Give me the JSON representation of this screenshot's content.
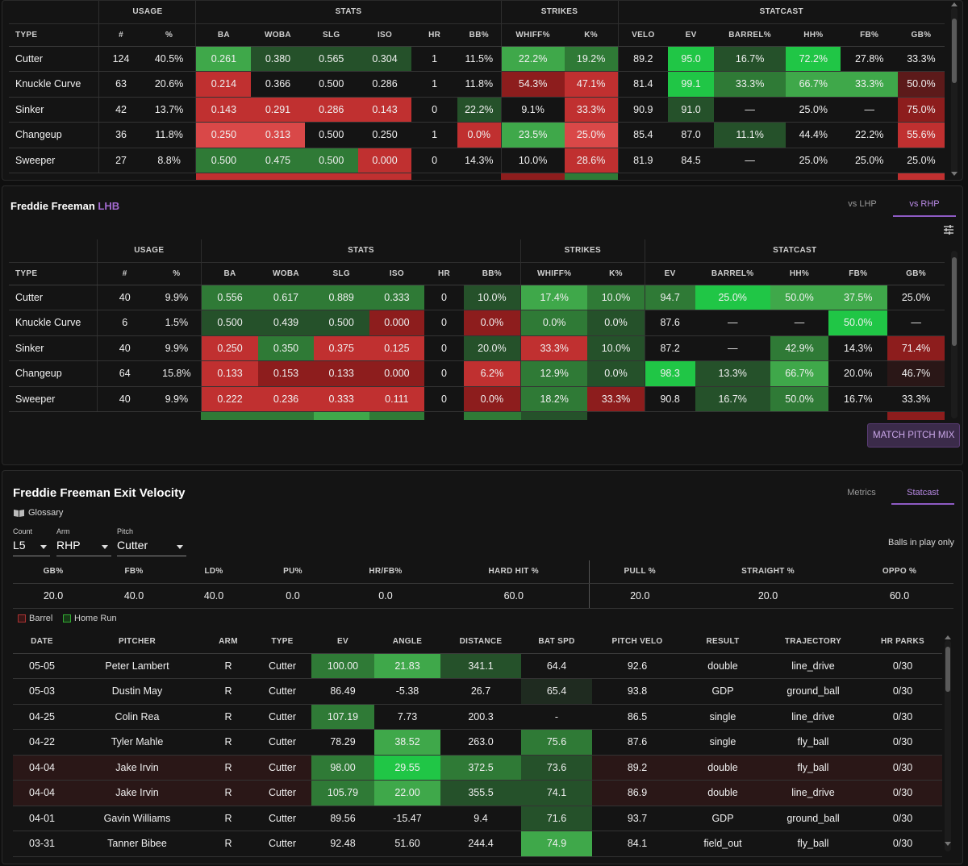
{
  "colors": {
    "g1": "#25512a",
    "g2": "#2f7a36",
    "g3": "#3fa84a",
    "g4": "#20c646",
    "r1": "#5c1a1a",
    "r2": "#8d1d1d",
    "r3": "#c03030",
    "r4": "#d94848",
    "rb": "#2a1717",
    "gb": "#1f2b20"
  },
  "top": {
    "groups": [
      "USAGE",
      "STATS",
      "STRIKES",
      "STATCAST"
    ],
    "headers": [
      "TYPE",
      "#",
      "%",
      "BA",
      "WOBA",
      "SLG",
      "ISO",
      "HR",
      "BB%",
      "WHIFF%",
      "K%",
      "VELO",
      "EV",
      "BARREL%",
      "HH%",
      "FB%",
      "GB%"
    ],
    "rows": [
      {
        "cells": [
          "Cutter",
          "124",
          "40.5%",
          "0.261",
          "0.380",
          "0.565",
          "0.304",
          "1",
          "11.5%",
          "22.2%",
          "19.2%",
          "89.2",
          "95.0",
          "16.7%",
          "72.2%",
          "27.8%",
          "33.3%"
        ],
        "c": [
          "",
          "",
          "",
          "g3",
          "g1",
          "g1",
          "g1",
          "",
          "",
          "g3",
          "g2",
          "",
          "g4",
          "g1",
          "g4",
          "",
          ""
        ]
      },
      {
        "cells": [
          "Knuckle Curve",
          "63",
          "20.6%",
          "0.214",
          "0.366",
          "0.500",
          "0.286",
          "1",
          "11.8%",
          "54.3%",
          "47.1%",
          "81.4",
          "99.1",
          "33.3%",
          "66.7%",
          "33.3%",
          "50.0%"
        ],
        "c": [
          "",
          "",
          "",
          "r3",
          "",
          "",
          "",
          "",
          "",
          "r2",
          "r3",
          "",
          "g4",
          "g2",
          "g3",
          "g3",
          "r1"
        ]
      },
      {
        "cells": [
          "Sinker",
          "42",
          "13.7%",
          "0.143",
          "0.291",
          "0.286",
          "0.143",
          "0",
          "22.2%",
          "9.1%",
          "33.3%",
          "90.9",
          "91.0",
          "—",
          "25.0%",
          "—",
          "75.0%"
        ],
        "c": [
          "",
          "",
          "",
          "r3",
          "r3",
          "r3",
          "r3",
          "",
          "g1",
          "",
          "r3",
          "",
          "g1",
          "",
          "",
          "",
          "r2"
        ]
      },
      {
        "cells": [
          "Changeup",
          "36",
          "11.8%",
          "0.250",
          "0.313",
          "0.500",
          "0.250",
          "1",
          "0.0%",
          "23.5%",
          "25.0%",
          "85.4",
          "87.0",
          "11.1%",
          "44.4%",
          "22.2%",
          "55.6%"
        ],
        "c": [
          "",
          "",
          "",
          "r4",
          "r4",
          "",
          "",
          "",
          "r3",
          "g3",
          "r4",
          "",
          "",
          "g1",
          "",
          "",
          "r3"
        ]
      },
      {
        "cells": [
          "Sweeper",
          "27",
          "8.8%",
          "0.500",
          "0.475",
          "0.500",
          "0.000",
          "0",
          "14.3%",
          "10.0%",
          "28.6%",
          "81.9",
          "84.5",
          "—",
          "25.0%",
          "25.0%",
          "25.0%"
        ],
        "c": [
          "",
          "",
          "",
          "g2",
          "g2",
          "g2",
          "r3",
          "",
          "",
          "",
          "r3",
          "",
          "",
          "",
          "",
          "",
          ""
        ]
      }
    ]
  },
  "freeman": {
    "name": "Freddie Freeman",
    "hand": "LHB",
    "tab_lhp": "vs LHP",
    "tab_rhp": "vs RHP",
    "groups": [
      "USAGE",
      "STATS",
      "STRIKES",
      "STATCAST"
    ],
    "headers": [
      "TYPE",
      "#",
      "%",
      "BA",
      "WOBA",
      "SLG",
      "ISO",
      "HR",
      "BB%",
      "WHIFF%",
      "K%",
      "EV",
      "BARREL%",
      "HH%",
      "FB%",
      "GB%"
    ],
    "rows": [
      {
        "cells": [
          "Cutter",
          "40",
          "9.9%",
          "0.556",
          "0.617",
          "0.889",
          "0.333",
          "0",
          "10.0%",
          "17.4%",
          "10.0%",
          "94.7",
          "25.0%",
          "50.0%",
          "37.5%",
          "25.0%"
        ],
        "c": [
          "",
          "",
          "",
          "g2",
          "g2",
          "g2",
          "g2",
          "",
          "g1",
          "g3",
          "g2",
          "g2",
          "g4",
          "g3",
          "g3",
          ""
        ]
      },
      {
        "cells": [
          "Knuckle Curve",
          "6",
          "1.5%",
          "0.500",
          "0.439",
          "0.500",
          "0.000",
          "0",
          "0.0%",
          "0.0%",
          "0.0%",
          "87.6",
          "—",
          "—",
          "50.0%",
          "—"
        ],
        "c": [
          "",
          "",
          "",
          "g1",
          "g1",
          "g1",
          "r2",
          "",
          "r2",
          "g2",
          "g1",
          "",
          "",
          "",
          "g4",
          ""
        ]
      },
      {
        "cells": [
          "Sinker",
          "40",
          "9.9%",
          "0.250",
          "0.350",
          "0.375",
          "0.125",
          "0",
          "20.0%",
          "33.3%",
          "10.0%",
          "87.2",
          "—",
          "42.9%",
          "14.3%",
          "71.4%"
        ],
        "c": [
          "",
          "",
          "",
          "r3",
          "g2",
          "r3",
          "r3",
          "",
          "g1",
          "r3",
          "g1",
          "",
          "",
          "g2",
          "",
          "r2"
        ]
      },
      {
        "cells": [
          "Changeup",
          "64",
          "15.8%",
          "0.133",
          "0.153",
          "0.133",
          "0.000",
          "0",
          "6.2%",
          "12.9%",
          "0.0%",
          "98.3",
          "13.3%",
          "66.7%",
          "20.0%",
          "46.7%"
        ],
        "c": [
          "",
          "",
          "",
          "r3",
          "r2",
          "r2",
          "r2",
          "",
          "r3",
          "g2",
          "g1",
          "g4",
          "g1",
          "g3",
          "",
          "rb"
        ]
      },
      {
        "cells": [
          "Sweeper",
          "40",
          "9.9%",
          "0.222",
          "0.236",
          "0.333",
          "0.111",
          "0",
          "0.0%",
          "18.2%",
          "33.3%",
          "90.8",
          "16.7%",
          "50.0%",
          "16.7%",
          "33.3%"
        ],
        "c": [
          "",
          "",
          "",
          "r3",
          "r3",
          "r3",
          "r3",
          "",
          "r2",
          "g2",
          "r2",
          "",
          "g1",
          "g2",
          "",
          ""
        ]
      }
    ],
    "match_btn": "MATCH PITCH MIX"
  },
  "ev": {
    "title": "Freddie Freeman Exit Velocity",
    "tab_metrics": "Metrics",
    "tab_statcast": "Statcast",
    "glossary": "Glossary",
    "filters": [
      {
        "label": "Count",
        "value": "L5"
      },
      {
        "label": "Arm",
        "value": "RHP"
      },
      {
        "label": "Pitch",
        "value": "Cutter"
      }
    ],
    "bip": "Balls in play only",
    "summary_headers": [
      "GB%",
      "FB%",
      "LD%",
      "PU%",
      "HR/FB%",
      "HARD HIT %",
      "PULL %",
      "STRAIGHT %",
      "OPPO %"
    ],
    "summary_values": [
      "20.0",
      "40.0",
      "40.0",
      "0.0",
      "0.0",
      "60.0",
      "20.0",
      "20.0",
      "60.0"
    ],
    "legend_barrel": "Barrel",
    "legend_hr": "Home Run",
    "headers": [
      "DATE",
      "PITCHER",
      "ARM",
      "TYPE",
      "EV",
      "ANGLE",
      "DISTANCE",
      "BAT SPD",
      "PITCH VELO",
      "RESULT",
      "TRAJECTORY",
      "HR PARKS"
    ],
    "rows": [
      {
        "cells": [
          "05-05",
          "Peter Lambert",
          "R",
          "Cutter",
          "100.00",
          "21.83",
          "341.1",
          "64.4",
          "92.6",
          "double",
          "line_drive",
          "0/30"
        ],
        "c": [
          "",
          "",
          "",
          "",
          "g2",
          "g3",
          "g1",
          "",
          "",
          "",
          "",
          ""
        ],
        "bg": ""
      },
      {
        "cells": [
          "05-03",
          "Dustin May",
          "R",
          "Cutter",
          "86.49",
          "-5.38",
          "26.7",
          "65.4",
          "93.8",
          "GDP",
          "ground_ball",
          "0/30"
        ],
        "c": [
          "",
          "",
          "",
          "",
          "",
          "",
          "",
          "gb",
          "",
          "",
          "",
          ""
        ],
        "bg": ""
      },
      {
        "cells": [
          "04-25",
          "Colin Rea",
          "R",
          "Cutter",
          "107.19",
          "7.73",
          "200.3",
          "-",
          "86.5",
          "single",
          "line_drive",
          "0/30"
        ],
        "c": [
          "",
          "",
          "",
          "",
          "g2",
          "",
          "",
          "",
          "",
          "",
          "",
          ""
        ],
        "bg": ""
      },
      {
        "cells": [
          "04-22",
          "Tyler Mahle",
          "R",
          "Cutter",
          "78.29",
          "38.52",
          "263.0",
          "75.6",
          "87.6",
          "single",
          "fly_ball",
          "0/30"
        ],
        "c": [
          "",
          "",
          "",
          "",
          "",
          "g3",
          "",
          "g2",
          "",
          "",
          "",
          ""
        ],
        "bg": ""
      },
      {
        "cells": [
          "04-04",
          "Jake Irvin",
          "R",
          "Cutter",
          "98.00",
          "29.55",
          "372.5",
          "73.6",
          "89.2",
          "double",
          "fly_ball",
          "0/30"
        ],
        "c": [
          "",
          "",
          "",
          "",
          "g2",
          "g4",
          "g2",
          "g1",
          "",
          "",
          "",
          ""
        ],
        "bg": "rb"
      },
      {
        "cells": [
          "04-04",
          "Jake Irvin",
          "R",
          "Cutter",
          "105.79",
          "22.00",
          "355.5",
          "74.1",
          "86.9",
          "double",
          "line_drive",
          "0/30"
        ],
        "c": [
          "",
          "",
          "",
          "",
          "g2",
          "g3",
          "g1",
          "g1",
          "",
          "",
          "",
          ""
        ],
        "bg": "rb"
      },
      {
        "cells": [
          "04-01",
          "Gavin Williams",
          "R",
          "Cutter",
          "89.56",
          "-15.47",
          "9.4",
          "71.6",
          "93.7",
          "GDP",
          "ground_ball",
          "0/30"
        ],
        "c": [
          "",
          "",
          "",
          "",
          "",
          "",
          "",
          "g1",
          "",
          "",
          "",
          ""
        ],
        "bg": ""
      },
      {
        "cells": [
          "03-31",
          "Tanner Bibee",
          "R",
          "Cutter",
          "92.48",
          "51.60",
          "244.4",
          "74.9",
          "84.1",
          "field_out",
          "fly_ball",
          "0/30"
        ],
        "c": [
          "",
          "",
          "",
          "",
          "",
          "",
          "",
          "g3",
          "",
          "",
          "",
          ""
        ],
        "bg": ""
      }
    ]
  }
}
